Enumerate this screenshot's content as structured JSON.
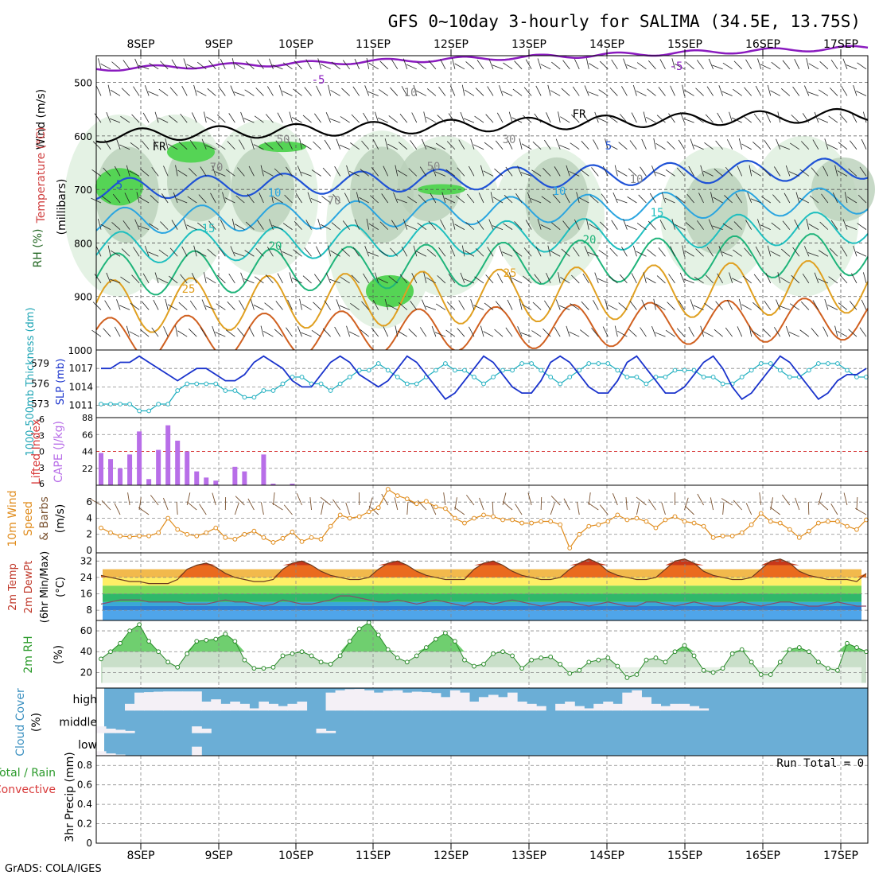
{
  "header": {
    "title": "GFS 0~10day 3-hourly for SALIMA (34.5E, 13.75S)",
    "footer": "GrADS: COLA/IGES"
  },
  "dates": [
    "8SEP",
    "9SEP",
    "10SEP",
    "11SEP",
    "12SEP",
    "13SEP",
    "14SEP",
    "15SEP",
    "16SEP",
    "17SEP"
  ],
  "panels": {
    "upper": {
      "labels": [
        "Wind (m/s)",
        "Temperature (°C)",
        "RH (%)",
        "(millibars)"
      ],
      "y_ticks": [
        "500",
        "600",
        "700",
        "800",
        "900",
        "1000"
      ],
      "contour_labels": [
        "-5",
        "-5",
        "FR",
        "FR",
        "5",
        "5",
        "10",
        "10",
        "15",
        "15",
        "20",
        "20",
        "25",
        "25",
        "70",
        "70",
        "50",
        "50",
        "30",
        "10",
        "10"
      ]
    },
    "thickness": {
      "label_left": "1000-500mb Thickness (dm)",
      "label_right": "SLP (mb)",
      "y_ticks_left": [
        "579",
        "576",
        "573"
      ],
      "y_ticks_right": [
        "1017",
        "1014",
        "1011"
      ]
    },
    "cape": {
      "label_left": "Lifted Index",
      "label_right": "CAPE (J/kg)",
      "y_ticks_left": [
        "-6",
        "-3",
        "0",
        "3",
        "6"
      ],
      "y_ticks_right": [
        "88",
        "66",
        "44",
        "22"
      ]
    },
    "wind10m": {
      "labels": [
        "10m Wind",
        "Speed",
        "& Barbs",
        "(m/s)"
      ],
      "y_ticks": [
        "6",
        "4",
        "2",
        "0"
      ]
    },
    "temp2m": {
      "labels": [
        "2m Temp",
        "2m DewPt",
        "(6hr Min/Max)",
        "(°C)"
      ],
      "y_ticks": [
        "32",
        "24",
        "16",
        "8"
      ]
    },
    "rh2m": {
      "labels": [
        "2m RH",
        "(%)"
      ],
      "y_ticks": [
        "60",
        "40",
        "20"
      ]
    },
    "cloud": {
      "labels": [
        "Cloud Cover",
        "(%)"
      ],
      "levels": [
        "high",
        "middle",
        "low"
      ]
    },
    "precip": {
      "labels": [
        "Total / Rain",
        "Convective",
        "3hr Precip (mm)"
      ],
      "run_total": "Run Total = 0",
      "y_ticks": [
        "0.8",
        "0.6",
        "0.4",
        "0.2",
        "0"
      ]
    }
  },
  "colors": {
    "slp": "#1a33cc",
    "thickness": "#22b0c0",
    "cape_bar": "#b86ee8",
    "lifted_index": "#d83a3a",
    "wind_speed": "#e08c1c",
    "barbs": "#7a5230",
    "rh_green": "#44cc44",
    "cloud_blue": "#6baed6"
  },
  "chart_data": [
    {
      "type": "line",
      "title": "1000-500mb Thickness / SLP",
      "series": [
        {
          "name": "1000-500mb Thickness",
          "values": [
            573,
            573,
            573,
            573,
            572,
            572,
            573,
            573,
            575,
            576,
            576,
            576,
            576,
            575,
            575,
            574,
            574,
            575,
            575,
            576,
            577,
            577,
            576,
            576,
            575,
            576,
            577,
            578,
            578,
            579,
            578,
            577,
            576,
            576,
            577,
            578,
            579,
            578,
            578,
            577,
            576,
            577,
            578,
            578,
            579,
            579,
            578,
            577,
            576,
            577,
            578,
            579,
            579,
            579,
            578,
            577,
            577,
            576,
            577,
            577,
            578,
            578,
            578,
            577,
            577,
            576,
            576,
            577,
            578,
            579,
            579,
            578,
            577,
            577,
            578,
            579,
            579,
            579,
            578,
            577,
            577
          ]
        },
        {
          "name": "SLP",
          "values": [
            1017,
            1017,
            1018,
            1018,
            1019,
            1018,
            1017,
            1016,
            1015,
            1016,
            1017,
            1017,
            1016,
            1015,
            1015,
            1016,
            1018,
            1019,
            1018,
            1017,
            1015,
            1014,
            1014,
            1016,
            1018,
            1019,
            1018,
            1016,
            1015,
            1014,
            1015,
            1017,
            1019,
            1018,
            1016,
            1014,
            1012,
            1013,
            1015,
            1017,
            1019,
            1018,
            1016,
            1014,
            1013,
            1013,
            1015,
            1018,
            1019,
            1018,
            1016,
            1014,
            1013,
            1013,
            1015,
            1018,
            1019,
            1017,
            1015,
            1013,
            1013,
            1014,
            1016,
            1018,
            1019,
            1017,
            1014,
            1012,
            1013,
            1015,
            1017,
            1019,
            1018,
            1016,
            1014,
            1012,
            1013,
            1015,
            1016,
            1016,
            1017
          ]
        }
      ]
    },
    {
      "type": "bar",
      "title": "CAPE",
      "values": [
        42,
        34,
        22,
        40,
        70,
        8,
        46,
        78,
        58,
        44,
        18,
        10,
        6,
        0,
        24,
        18,
        0,
        40,
        2,
        0,
        2,
        0,
        0,
        0,
        0,
        0,
        0,
        0,
        0,
        0,
        0,
        0,
        0,
        0,
        0,
        0,
        0,
        0,
        0,
        0,
        0,
        0,
        0,
        0,
        0,
        0,
        0,
        0,
        0,
        0,
        0,
        0,
        0,
        0,
        0,
        0,
        0,
        0,
        0,
        0,
        0,
        0,
        0,
        0,
        0,
        0,
        0,
        0,
        0,
        0,
        0,
        0,
        0,
        0,
        0,
        0,
        0,
        0,
        0,
        0,
        0
      ]
    },
    {
      "type": "line",
      "title": "10m Wind Speed",
      "values": [
        2.8,
        2.2,
        1.8,
        1.7,
        1.8,
        1.8,
        2.2,
        4.0,
        2.6,
        2.0,
        1.8,
        2.2,
        2.8,
        1.6,
        1.4,
        2.0,
        2.4,
        1.6,
        1.0,
        1.5,
        2.3,
        1.1,
        1.6,
        1.4,
        3.0,
        4.4,
        4.0,
        4.2,
        4.8,
        5.3,
        7.6,
        6.8,
        6.4,
        5.8,
        6.1,
        5.4,
        5.2,
        4.0,
        3.4,
        4.0,
        4.4,
        4.2,
        3.8,
        3.8,
        3.4,
        3.4,
        3.6,
        3.6,
        3.2,
        0.3,
        2.0,
        3.0,
        3.2,
        3.6,
        4.4,
        3.8,
        4.0,
        3.6,
        2.8,
        3.8,
        4.2,
        3.6,
        3.4,
        3.0,
        1.6,
        1.8,
        1.8,
        2.2,
        3.2,
        4.6,
        3.6,
        3.4,
        2.6,
        1.6,
        2.4,
        3.4,
        3.6,
        3.6,
        3.0,
        2.6,
        3.8
      ]
    },
    {
      "type": "line",
      "title": "2m Temp / 2m DewPt",
      "series": [
        {
          "name": "2m Temp",
          "values": [
            25,
            24,
            23,
            22,
            22,
            21,
            21,
            21,
            23,
            28,
            30,
            31,
            29,
            26,
            24,
            23,
            22,
            22,
            23,
            28,
            31,
            32,
            30,
            27,
            25,
            24,
            23,
            23,
            24,
            28,
            31,
            32,
            30,
            27,
            25,
            24,
            23,
            23,
            23,
            28,
            31,
            32,
            30,
            27,
            25,
            24,
            23,
            23,
            24,
            28,
            31,
            33,
            31,
            27,
            25,
            24,
            23,
            23,
            24,
            28,
            32,
            33,
            31,
            27,
            25,
            24,
            23,
            23,
            24,
            28,
            32,
            33,
            31,
            27,
            25,
            24,
            23,
            23,
            23,
            22,
            26
          ]
        },
        {
          "name": "2m DewPt",
          "values": [
            11,
            12,
            13,
            13,
            13,
            12,
            12,
            12,
            12,
            11,
            11,
            11,
            12,
            13,
            12,
            12,
            11,
            10,
            11,
            13,
            12,
            11,
            11,
            12,
            13,
            15,
            15,
            14,
            13,
            12,
            12,
            13,
            12,
            11,
            12,
            13,
            12,
            11,
            10,
            12,
            12,
            11,
            12,
            13,
            12,
            11,
            10,
            11,
            12,
            12,
            11,
            10,
            11,
            12,
            11,
            10,
            10,
            12,
            12,
            11,
            10,
            11,
            12,
            11,
            10,
            10,
            11,
            12,
            11,
            10,
            11,
            12,
            12,
            11,
            10,
            10,
            11,
            12,
            11,
            10,
            10
          ]
        }
      ]
    },
    {
      "type": "area",
      "title": "2m RH",
      "values": [
        33,
        40,
        48,
        60,
        66,
        50,
        40,
        30,
        25,
        38,
        50,
        51,
        52,
        57,
        50,
        32,
        24,
        24,
        25,
        36,
        38,
        40,
        36,
        30,
        28,
        36,
        50,
        62,
        68,
        56,
        42,
        34,
        30,
        36,
        44,
        52,
        58,
        50,
        32,
        26,
        28,
        38,
        40,
        36,
        24,
        32,
        34,
        35,
        28,
        19,
        22,
        30,
        32,
        34,
        26,
        15,
        18,
        32,
        34,
        30,
        40,
        46,
        36,
        22,
        20,
        24,
        38,
        42,
        30,
        18,
        18,
        30,
        42,
        44,
        40,
        30,
        24,
        22,
        48,
        44,
        40
      ]
    },
    {
      "type": "bar",
      "title": "Cloud Cover",
      "series": [
        {
          "name": "high",
          "values": [
            0,
            0,
            0,
            30,
            80,
            82,
            84,
            85,
            85,
            85,
            85,
            40,
            50,
            30,
            40,
            30,
            10,
            40,
            30,
            20,
            30,
            40,
            0,
            0,
            80,
            90,
            95,
            96,
            90,
            80,
            88,
            90,
            80,
            84,
            82,
            78,
            60,
            90,
            80,
            40,
            60,
            70,
            60,
            80,
            40,
            30,
            20,
            0,
            30,
            40,
            20,
            10,
            30,
            40,
            30,
            80,
            90,
            60,
            30,
            20,
            30,
            30,
            20,
            10,
            0,
            0,
            0,
            0,
            0,
            0,
            0,
            0,
            0,
            0,
            0,
            0,
            0,
            0,
            0,
            0,
            0
          ]
        },
        {
          "name": "middle",
          "values": [
            30,
            20,
            15,
            10,
            0,
            0,
            0,
            0,
            0,
            0,
            30,
            20,
            0,
            0,
            0,
            0,
            0,
            0,
            0,
            0,
            0,
            0,
            0,
            20,
            10,
            0,
            0,
            0,
            0,
            0,
            0,
            0,
            0,
            0,
            0,
            0,
            0,
            0,
            0,
            0,
            0,
            0,
            0,
            0,
            0,
            0,
            0,
            0,
            0,
            0,
            0,
            0,
            0,
            0,
            0,
            0,
            0,
            0,
            0,
            0,
            0,
            0,
            0,
            0,
            0,
            0,
            0,
            0,
            0,
            0,
            0,
            0,
            0,
            0,
            0,
            0,
            0,
            0,
            0,
            0,
            0
          ]
        },
        {
          "name": "low",
          "values": [
            20,
            10,
            5,
            0,
            0,
            0,
            0,
            0,
            0,
            0,
            40,
            0,
            0,
            0,
            0,
            0,
            0,
            0,
            0,
            0,
            0,
            0,
            0,
            0,
            0,
            0,
            0,
            0,
            0,
            0,
            0,
            0,
            0,
            0,
            0,
            0,
            0,
            0,
            0,
            0,
            0,
            0,
            0,
            0,
            0,
            0,
            0,
            0,
            0,
            0,
            0,
            0,
            0,
            0,
            0,
            0,
            0,
            0,
            0,
            0,
            0,
            0,
            0,
            0,
            0,
            0,
            0,
            0,
            0,
            0,
            0,
            0,
            0,
            0,
            0,
            0,
            0,
            0,
            0,
            0,
            0
          ]
        }
      ]
    },
    {
      "type": "bar",
      "title": "3hr Precip (mm)",
      "values": [
        0,
        0,
        0,
        0,
        0,
        0,
        0,
        0,
        0,
        0,
        0,
        0,
        0,
        0,
        0,
        0,
        0,
        0,
        0,
        0,
        0,
        0,
        0,
        0,
        0,
        0,
        0,
        0,
        0,
        0,
        0,
        0,
        0,
        0,
        0,
        0,
        0,
        0,
        0,
        0,
        0,
        0,
        0,
        0,
        0,
        0,
        0,
        0,
        0,
        0,
        0,
        0,
        0,
        0,
        0,
        0,
        0,
        0,
        0,
        0,
        0,
        0,
        0,
        0,
        0,
        0,
        0,
        0,
        0,
        0,
        0,
        0,
        0,
        0,
        0,
        0,
        0,
        0,
        0,
        0,
        0
      ],
      "ylim": [
        0,
        0.9
      ]
    }
  ]
}
